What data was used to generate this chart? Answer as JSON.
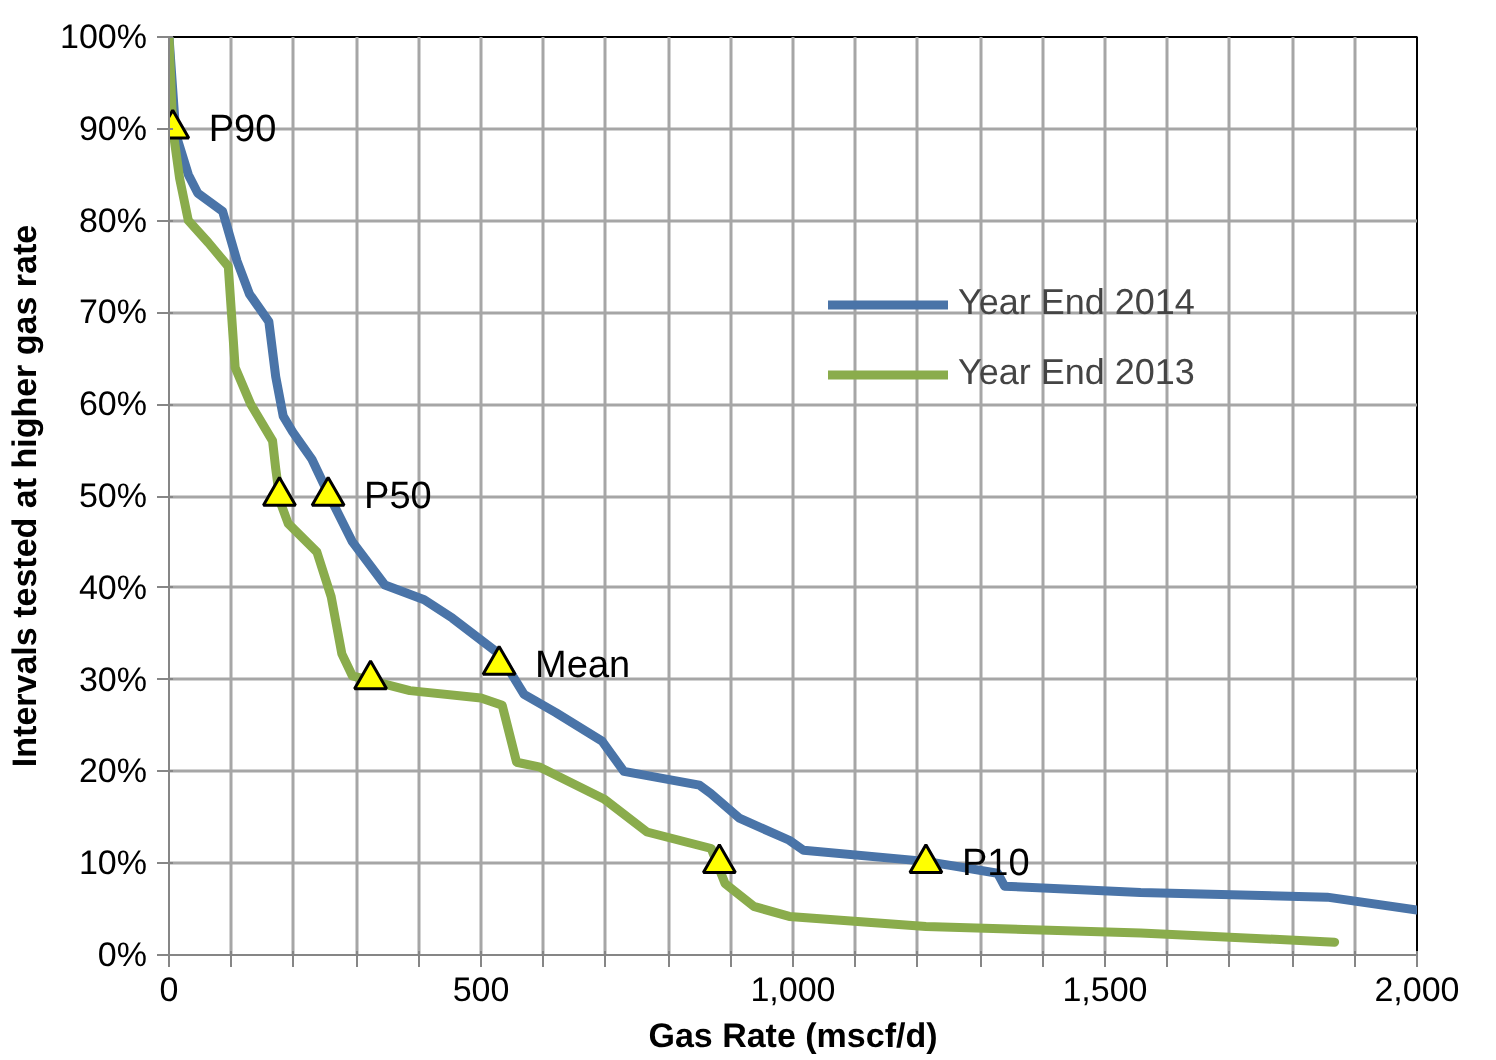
{
  "chart_data": {
    "type": "line",
    "xlabel": "Gas Rate (mscf/d)",
    "ylabel": "Intervals tested at higher gas rate",
    "xlim": [
      0,
      2000
    ],
    "ylim": [
      0,
      100
    ],
    "xticks": [
      0,
      {
        "value": 100,
        "label": null
      },
      {
        "value": 200,
        "label": null
      },
      {
        "value": 300,
        "label": null
      },
      {
        "value": 400,
        "label": null
      },
      500,
      {
        "value": 600,
        "label": null
      },
      {
        "value": 700,
        "label": null
      },
      {
        "value": 800,
        "label": null
      },
      {
        "value": 900,
        "label": null
      },
      {
        "value": 1000,
        "label": "1,000"
      },
      {
        "value": 1100,
        "label": null
      },
      {
        "value": 1200,
        "label": null
      },
      {
        "value": 1300,
        "label": null
      },
      {
        "value": 1400,
        "label": null
      },
      {
        "value": 1500,
        "label": "1,500"
      },
      {
        "value": 1600,
        "label": null
      },
      {
        "value": 1700,
        "label": null
      },
      {
        "value": 1800,
        "label": null
      },
      {
        "value": 1900,
        "label": null
      },
      {
        "value": 2000,
        "label": "2,000"
      }
    ],
    "yticks": [
      {
        "value": 0,
        "label": "0%"
      },
      {
        "value": 10,
        "label": "10%"
      },
      {
        "value": 20,
        "label": "20%"
      },
      {
        "value": 30,
        "label": "30%"
      },
      {
        "value": 40,
        "label": "40%"
      },
      {
        "value": 50,
        "label": "50%"
      },
      {
        "value": 60,
        "label": "60%"
      },
      {
        "value": 70,
        "label": "70%"
      },
      {
        "value": 80,
        "label": "80%"
      },
      {
        "value": 90,
        "label": "90%"
      },
      {
        "value": 100,
        "label": "100%"
      }
    ],
    "grid": true,
    "legend": "right",
    "line_style": "solid",
    "series": [
      {
        "name": "Year End 2014",
        "color": "#4a74a8",
        "x": [
          0,
          11,
          31,
          46,
          86,
          109,
          129,
          160,
          171,
          183,
          198,
          229,
          257,
          294,
          346,
          409,
          454,
          529,
          569,
          620,
          694,
          729,
          850,
          868,
          914,
          994,
          1017,
          1213,
          1328,
          1339,
          1557,
          1856,
          2000
        ],
        "values": [
          100,
          89.4,
          85,
          83,
          81,
          75.6,
          72,
          69,
          63,
          58.7,
          57,
          54,
          50,
          45,
          40.3,
          38.7,
          36.7,
          32.8,
          28.4,
          26.4,
          23.3,
          20,
          18.5,
          17.6,
          14.9,
          12.5,
          11.4,
          10.2,
          8.9,
          7.5,
          6.8,
          6.3,
          4.9
        ]
      },
      {
        "name": "Year End 2013",
        "color": "#8aac4c",
        "x": [
          0,
          6,
          17,
          31,
          63,
          95,
          106,
          131,
          166,
          171,
          178,
          191,
          237,
          260,
          277,
          294,
          386,
          500,
          534,
          557,
          593,
          697,
          766,
          869,
          891,
          937,
          994,
          1213,
          1557,
          1868
        ],
        "values": [
          100,
          90,
          84.6,
          80,
          77.6,
          75,
          64,
          60,
          56,
          53,
          49.4,
          47,
          43.9,
          39,
          32.8,
          30.4,
          28.8,
          28,
          27.2,
          21,
          20.5,
          17,
          13.4,
          11.6,
          7.8,
          5.3,
          4.2,
          3.1,
          2.4,
          1.4
        ]
      },
      {
        "type": "scatter",
        "marker": "triangle",
        "color": "#ffff00",
        "x": [
          6,
          177,
          255,
          323,
          529,
          882,
          1213
        ],
        "values": [
          90,
          50,
          50,
          30,
          31.6,
          10,
          10
        ]
      }
    ],
    "annotations": [
      {
        "text": "P90",
        "x": 6,
        "y": 90
      },
      {
        "text": "P50",
        "x": 255,
        "y": 50
      },
      {
        "text": "Mean",
        "x": 529,
        "y": 31.6
      },
      {
        "text": "P10",
        "x": 1213,
        "y": 10
      }
    ]
  }
}
